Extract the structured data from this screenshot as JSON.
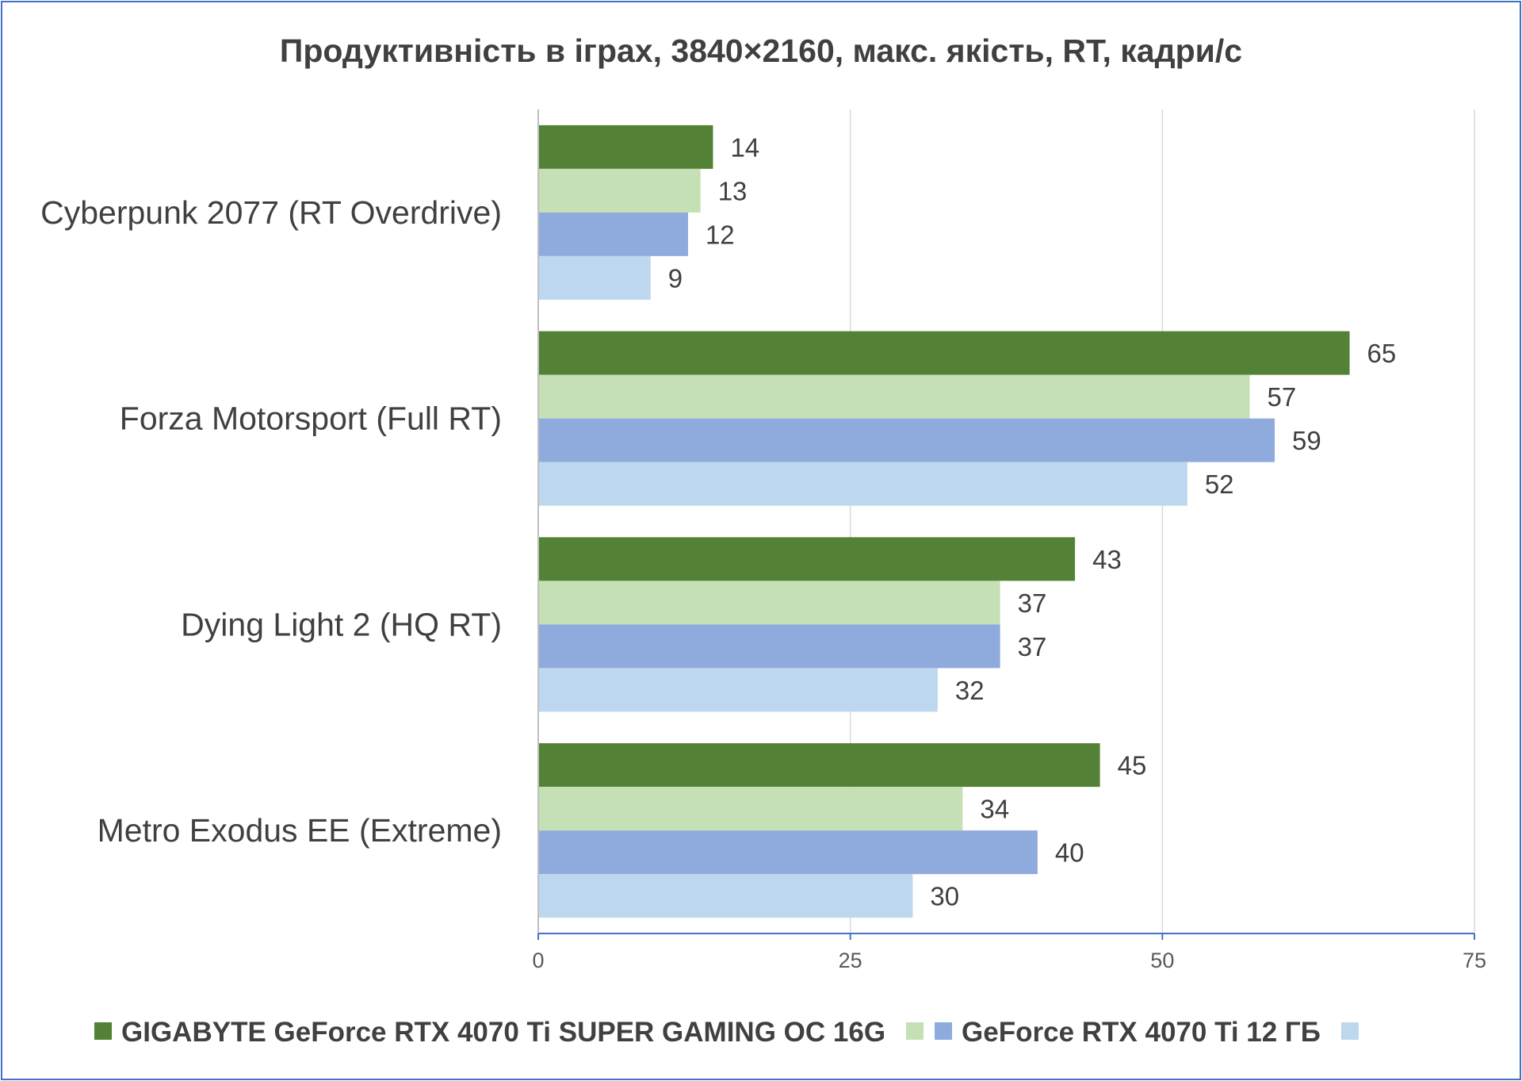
{
  "chart_data": {
    "type": "bar",
    "orientation": "horizontal",
    "title": "Продуктивність в іграх, 3840×2160, макс. якість, RT, кадри/с",
    "categories": [
      "Cyberpunk 2077 (RT Overdrive)",
      "Forza Motorsport (Full RT)",
      "Dying Light 2 (HQ RT)",
      "Metro Exodus EE (Extreme)"
    ],
    "series": [
      {
        "name": "GIGABYTE GeForce RTX 4070 Ti SUPER GAMING OC 16G",
        "color": "#538135",
        "values": [
          14,
          65,
          43,
          45
        ]
      },
      {
        "name": "",
        "color": "#c5e0b4",
        "values": [
          13,
          57,
          37,
          34
        ]
      },
      {
        "name": "GeForce RTX 4070 Ti 12 ГБ",
        "color": "#8faadc",
        "values": [
          12,
          59,
          37,
          40
        ]
      },
      {
        "name": "",
        "color": "#bdd7ee",
        "values": [
          9,
          52,
          32,
          30
        ]
      }
    ],
    "xlim": [
      0,
      75
    ],
    "xticks": [
      0,
      25,
      50,
      75
    ],
    "xtick_labels": [
      "0",
      "25",
      "50",
      "75"
    ],
    "grid": true,
    "data_labels": true,
    "legend_position": "bottom"
  }
}
